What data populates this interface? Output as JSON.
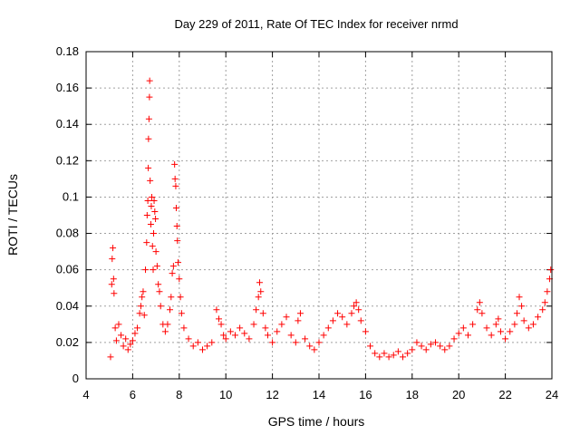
{
  "chart_data": {
    "type": "scatter",
    "title": "Day 229 of 2011, Rate Of TEC Index for receiver nrmd",
    "xlabel": "GPS time / hours",
    "ylabel": "ROTI / TECUs",
    "xlim": [
      4,
      24
    ],
    "ylim": [
      0,
      0.18
    ],
    "xticks": [
      4,
      6,
      8,
      10,
      12,
      14,
      16,
      18,
      20,
      22,
      24
    ],
    "yticks": [
      0,
      0.02,
      0.04,
      0.06,
      0.08,
      0.1,
      0.12,
      0.14,
      0.16,
      0.18
    ],
    "xtick_labels": [
      "4",
      "6",
      "8",
      "10",
      "12",
      "14",
      "16",
      "18",
      "20",
      "22",
      "24"
    ],
    "ytick_labels": [
      "0",
      "0.02",
      "0.04",
      "0.06",
      "0.08",
      "0.1",
      "0.12",
      "0.14",
      "0.16",
      "0.18"
    ],
    "grid": true,
    "marker": "+",
    "color": "#ff0000",
    "series": [
      {
        "name": "",
        "points": [
          [
            5.05,
            0.012
          ],
          [
            5.1,
            0.052
          ],
          [
            5.12,
            0.066
          ],
          [
            5.15,
            0.072
          ],
          [
            5.18,
            0.055
          ],
          [
            5.2,
            0.047
          ],
          [
            5.25,
            0.028
          ],
          [
            5.3,
            0.021
          ],
          [
            5.4,
            0.03
          ],
          [
            5.5,
            0.024
          ],
          [
            5.6,
            0.018
          ],
          [
            5.7,
            0.022
          ],
          [
            5.8,
            0.016
          ],
          [
            5.9,
            0.019
          ],
          [
            6.0,
            0.021
          ],
          [
            6.1,
            0.025
          ],
          [
            6.2,
            0.028
          ],
          [
            6.3,
            0.036
          ],
          [
            6.35,
            0.04
          ],
          [
            6.4,
            0.045
          ],
          [
            6.45,
            0.048
          ],
          [
            6.5,
            0.035
          ],
          [
            6.55,
            0.06
          ],
          [
            6.6,
            0.075
          ],
          [
            6.62,
            0.09
          ],
          [
            6.65,
            0.098
          ],
          [
            6.67,
            0.116
          ],
          [
            6.68,
            0.132
          ],
          [
            6.7,
            0.143
          ],
          [
            6.72,
            0.155
          ],
          [
            6.73,
            0.164
          ],
          [
            6.75,
            0.109
          ],
          [
            6.78,
            0.085
          ],
          [
            6.8,
            0.095
          ],
          [
            6.82,
            0.1
          ],
          [
            6.85,
            0.073
          ],
          [
            6.88,
            0.06
          ],
          [
            6.9,
            0.08
          ],
          [
            6.92,
            0.098
          ],
          [
            6.95,
            0.092
          ],
          [
            6.98,
            0.088
          ],
          [
            7.0,
            0.07
          ],
          [
            7.05,
            0.062
          ],
          [
            7.1,
            0.052
          ],
          [
            7.15,
            0.048
          ],
          [
            7.2,
            0.04
          ],
          [
            7.3,
            0.03
          ],
          [
            7.4,
            0.026
          ],
          [
            7.5,
            0.03
          ],
          [
            7.6,
            0.038
          ],
          [
            7.65,
            0.045
          ],
          [
            7.7,
            0.058
          ],
          [
            7.75,
            0.062
          ],
          [
            7.8,
            0.118
          ],
          [
            7.82,
            0.11
          ],
          [
            7.85,
            0.106
          ],
          [
            7.87,
            0.094
          ],
          [
            7.9,
            0.084
          ],
          [
            7.92,
            0.076
          ],
          [
            7.95,
            0.064
          ],
          [
            8.0,
            0.055
          ],
          [
            8.05,
            0.045
          ],
          [
            8.1,
            0.036
          ],
          [
            8.2,
            0.028
          ],
          [
            8.4,
            0.022
          ],
          [
            8.6,
            0.018
          ],
          [
            8.8,
            0.02
          ],
          [
            9.0,
            0.016
          ],
          [
            9.2,
            0.018
          ],
          [
            9.4,
            0.02
          ],
          [
            9.6,
            0.038
          ],
          [
            9.7,
            0.033
          ],
          [
            9.8,
            0.03
          ],
          [
            9.9,
            0.024
          ],
          [
            10.0,
            0.022
          ],
          [
            10.2,
            0.026
          ],
          [
            10.4,
            0.024
          ],
          [
            10.6,
            0.028
          ],
          [
            10.8,
            0.025
          ],
          [
            11.0,
            0.022
          ],
          [
            11.2,
            0.03
          ],
          [
            11.3,
            0.038
          ],
          [
            11.4,
            0.045
          ],
          [
            11.45,
            0.053
          ],
          [
            11.5,
            0.048
          ],
          [
            11.6,
            0.036
          ],
          [
            11.7,
            0.028
          ],
          [
            11.8,
            0.024
          ],
          [
            12.0,
            0.02
          ],
          [
            12.2,
            0.026
          ],
          [
            12.4,
            0.03
          ],
          [
            12.6,
            0.034
          ],
          [
            12.8,
            0.024
          ],
          [
            13.0,
            0.02
          ],
          [
            13.1,
            0.032
          ],
          [
            13.2,
            0.036
          ],
          [
            13.4,
            0.022
          ],
          [
            13.6,
            0.018
          ],
          [
            13.8,
            0.016
          ],
          [
            14.0,
            0.02
          ],
          [
            14.2,
            0.024
          ],
          [
            14.4,
            0.028
          ],
          [
            14.6,
            0.032
          ],
          [
            14.8,
            0.036
          ],
          [
            15.0,
            0.034
          ],
          [
            15.2,
            0.03
          ],
          [
            15.4,
            0.036
          ],
          [
            15.5,
            0.04
          ],
          [
            15.6,
            0.042
          ],
          [
            15.7,
            0.038
          ],
          [
            15.8,
            0.032
          ],
          [
            16.0,
            0.026
          ],
          [
            16.2,
            0.018
          ],
          [
            16.4,
            0.014
          ],
          [
            16.6,
            0.012
          ],
          [
            16.8,
            0.014
          ],
          [
            17.0,
            0.012
          ],
          [
            17.2,
            0.013
          ],
          [
            17.4,
            0.015
          ],
          [
            17.6,
            0.012
          ],
          [
            17.8,
            0.014
          ],
          [
            18.0,
            0.016
          ],
          [
            18.2,
            0.02
          ],
          [
            18.4,
            0.018
          ],
          [
            18.6,
            0.016
          ],
          [
            18.8,
            0.019
          ],
          [
            19.0,
            0.02
          ],
          [
            19.2,
            0.018
          ],
          [
            19.4,
            0.016
          ],
          [
            19.6,
            0.018
          ],
          [
            19.8,
            0.022
          ],
          [
            20.0,
            0.025
          ],
          [
            20.2,
            0.028
          ],
          [
            20.4,
            0.024
          ],
          [
            20.6,
            0.03
          ],
          [
            20.8,
            0.038
          ],
          [
            20.9,
            0.042
          ],
          [
            21.0,
            0.036
          ],
          [
            21.2,
            0.028
          ],
          [
            21.4,
            0.024
          ],
          [
            21.6,
            0.03
          ],
          [
            21.7,
            0.033
          ],
          [
            21.8,
            0.026
          ],
          [
            22.0,
            0.022
          ],
          [
            22.2,
            0.026
          ],
          [
            22.4,
            0.03
          ],
          [
            22.5,
            0.036
          ],
          [
            22.6,
            0.045
          ],
          [
            22.7,
            0.04
          ],
          [
            22.8,
            0.032
          ],
          [
            23.0,
            0.028
          ],
          [
            23.2,
            0.03
          ],
          [
            23.4,
            0.034
          ],
          [
            23.6,
            0.038
          ],
          [
            23.7,
            0.042
          ],
          [
            23.8,
            0.048
          ],
          [
            23.9,
            0.055
          ],
          [
            23.95,
            0.06
          ]
        ]
      }
    ]
  }
}
